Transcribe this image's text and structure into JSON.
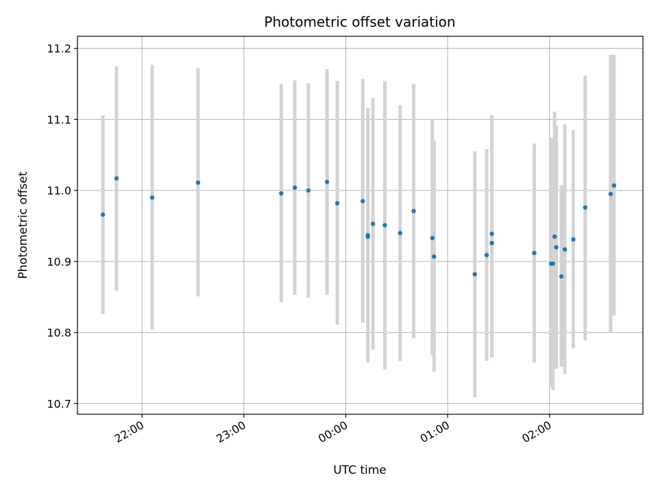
{
  "chart_data": {
    "type": "scatter",
    "title": "Photometric offset variation",
    "xlabel": "UTC time",
    "ylabel": "Photometric offset",
    "x_start": "21:22",
    "x_end": "02:55",
    "xlim": [
      "21:22",
      "02:55"
    ],
    "ylim": [
      10.685,
      11.217
    ],
    "grid": true,
    "x_ticks": [
      {
        "time": "22:00",
        "label": "22:00"
      },
      {
        "time": "23:00",
        "label": "23:00"
      },
      {
        "time": "00:00",
        "label": "00:00"
      },
      {
        "time": "01:00",
        "label": "01:00"
      },
      {
        "time": "02:00",
        "label": "02:00"
      }
    ],
    "y_ticks": [
      {
        "value": 10.7,
        "label": "10.7"
      },
      {
        "value": 10.8,
        "label": "10.8"
      },
      {
        "value": 10.9,
        "label": "10.9"
      },
      {
        "value": 11.0,
        "label": "11.0"
      },
      {
        "value": 11.1,
        "label": "11.1"
      },
      {
        "value": 11.2,
        "label": "11.2"
      }
    ],
    "colors": {
      "point": "#1f77b4",
      "errorbar": "#d3d3d3",
      "grid": "#b0b0b0",
      "axis": "#000000"
    },
    "points": [
      {
        "x": "21:37",
        "y": 10.966,
        "lo": 10.826,
        "hi": 11.106
      },
      {
        "x": "21:45",
        "y": 11.017,
        "lo": 10.859,
        "hi": 11.175
      },
      {
        "x": "22:06",
        "y": 10.99,
        "lo": 10.804,
        "hi": 11.177
      },
      {
        "x": "22:33",
        "y": 11.011,
        "lo": 10.851,
        "hi": 11.172
      },
      {
        "x": "23:22",
        "y": 10.996,
        "lo": 10.843,
        "hi": 11.15
      },
      {
        "x": "23:30",
        "y": 11.004,
        "lo": 10.853,
        "hi": 11.155
      },
      {
        "x": "23:38",
        "y": 11.0,
        "lo": 10.849,
        "hi": 11.151
      },
      {
        "x": "23:49",
        "y": 11.012,
        "lo": 10.853,
        "hi": 11.171
      },
      {
        "x": "23:55",
        "y": 10.982,
        "lo": 10.811,
        "hi": 11.154
      },
      {
        "x": "00:10",
        "y": 10.985,
        "lo": 10.814,
        "hi": 11.157
      },
      {
        "x": "00:13",
        "y": 10.937,
        "lo": 10.758,
        "hi": 11.116
      },
      {
        "x": "00:13",
        "y": 10.935,
        "lo": 10.76,
        "hi": 11.113
      },
      {
        "x": "00:16",
        "y": 10.953,
        "lo": 10.776,
        "hi": 11.13
      },
      {
        "x": "00:23",
        "y": 10.951,
        "lo": 10.748,
        "hi": 11.154
      },
      {
        "x": "00:32",
        "y": 10.94,
        "lo": 10.76,
        "hi": 11.12
      },
      {
        "x": "00:40",
        "y": 10.971,
        "lo": 10.792,
        "hi": 11.15
      },
      {
        "x": "00:51",
        "y": 10.933,
        "lo": 10.768,
        "hi": 11.1
      },
      {
        "x": "00:52",
        "y": 10.907,
        "lo": 10.745,
        "hi": 11.07
      },
      {
        "x": "01:16",
        "y": 10.882,
        "lo": 10.709,
        "hi": 11.055
      },
      {
        "x": "01:23",
        "y": 10.909,
        "lo": 10.76,
        "hi": 11.058
      },
      {
        "x": "01:26",
        "y": 10.926,
        "lo": 10.765,
        "hi": 11.088
      },
      {
        "x": "01:26",
        "y": 10.939,
        "lo": 10.772,
        "hi": 11.106
      },
      {
        "x": "01:51",
        "y": 10.912,
        "lo": 10.758,
        "hi": 11.066
      },
      {
        "x": "02:01",
        "y": 10.897,
        "lo": 10.724,
        "hi": 11.074
      },
      {
        "x": "02:02",
        "y": 10.897,
        "lo": 10.719,
        "hi": 11.074
      },
      {
        "x": "02:03",
        "y": 10.935,
        "lo": 10.76,
        "hi": 11.111
      },
      {
        "x": "02:04",
        "y": 10.92,
        "lo": 10.749,
        "hi": 11.091
      },
      {
        "x": "02:07",
        "y": 10.879,
        "lo": 10.752,
        "hi": 11.007
      },
      {
        "x": "02:09",
        "y": 10.917,
        "lo": 10.742,
        "hi": 11.093
      },
      {
        "x": "02:14",
        "y": 10.931,
        "lo": 10.778,
        "hi": 11.085
      },
      {
        "x": "02:21",
        "y": 10.976,
        "lo": 10.789,
        "hi": 11.162
      },
      {
        "x": "02:36",
        "y": 10.995,
        "lo": 10.8,
        "hi": 11.191
      },
      {
        "x": "02:38",
        "y": 11.007,
        "lo": 10.824,
        "hi": 11.191
      }
    ]
  }
}
